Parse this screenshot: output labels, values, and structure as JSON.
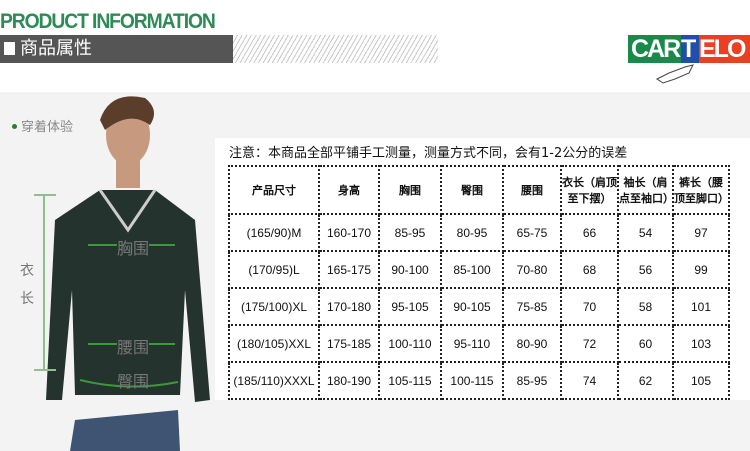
{
  "header": {
    "title": "PRODUCT INFORMATION",
    "section": "商品属性",
    "logo": "CARTELO"
  },
  "model": {
    "label": "穿着体验",
    "chest": "胸围",
    "waist": "腰围",
    "hip": "臀围",
    "length_1": "衣",
    "length_2": "长"
  },
  "note": "注意：本商品全部平铺手工测量，测量方式不同，会有1-2公分的误差",
  "table": {
    "headers": [
      "产品尺寸",
      "身高",
      "胸围",
      "臀围",
      "腰围",
      "衣长（肩顶至下摆）",
      "袖长（肩点至袖口）",
      "裤长（腰顶至脚口）"
    ],
    "rows": [
      [
        "(165/90)M",
        "160-170",
        "85-95",
        "80-95",
        "65-75",
        "66",
        "54",
        "97"
      ],
      [
        "(170/95)L",
        "165-175",
        "90-100",
        "85-100",
        "70-80",
        "68",
        "56",
        "99"
      ],
      [
        "(175/100)XL",
        "170-180",
        "95-105",
        "90-105",
        "75-85",
        "70",
        "58",
        "101"
      ],
      [
        "(180/105)XXL",
        "175-185",
        "100-110",
        "95-110",
        "80-90",
        "72",
        "60",
        "103"
      ],
      [
        "(185/110)XXXL",
        "180-190",
        "105-115",
        "100-115",
        "85-95",
        "74",
        "62",
        "105"
      ]
    ]
  },
  "colors": {
    "title_green": "#2e8b57",
    "sweater": "#25332e",
    "logo_green": "#1a8a4a",
    "logo_blue": "#1f4fa8",
    "logo_red": "#e84020"
  }
}
